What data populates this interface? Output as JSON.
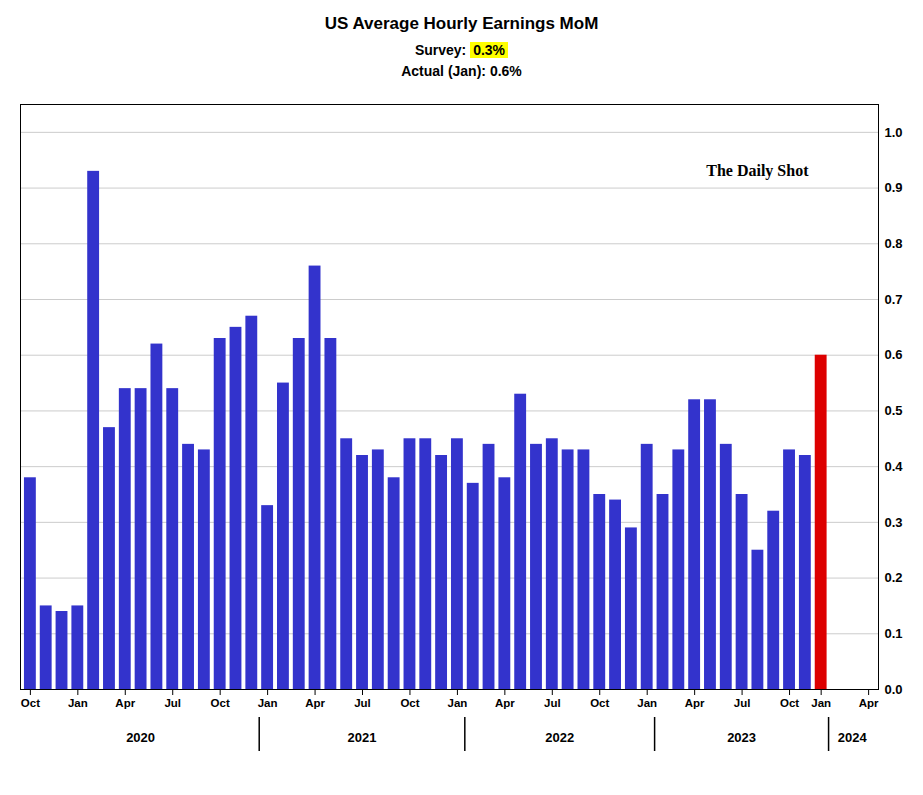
{
  "chart_data": {
    "type": "bar",
    "title": "US Average Hourly Earnings MoM",
    "annotations": [
      {
        "text": "Survey:",
        "highlight": "0.3%",
        "highlight_color": "#ffff00"
      },
      {
        "text": "Actual (Jan):  0.6%"
      }
    ],
    "watermark": "The Daily Shot",
    "categories": [
      "Oct",
      null,
      null,
      "Jan",
      null,
      null,
      "Apr",
      null,
      null,
      "Jul",
      null,
      null,
      "Oct",
      null,
      null,
      "Jan",
      null,
      null,
      "Apr",
      null,
      null,
      "Jul",
      null,
      null,
      "Oct",
      null,
      null,
      "Jan",
      null,
      null,
      "Apr",
      null,
      null,
      "Jul",
      null,
      null,
      "Oct",
      null,
      null,
      "Jan",
      null,
      null,
      "Apr",
      null,
      null,
      "Jul",
      null,
      null,
      "Oct",
      null,
      "Jan",
      null,
      null,
      "Apr"
    ],
    "values": [
      0.38,
      0.15,
      0.14,
      0.15,
      0.93,
      0.47,
      0.54,
      0.54,
      0.62,
      0.54,
      0.44,
      0.43,
      0.63,
      0.65,
      0.67,
      0.33,
      0.55,
      0.63,
      0.76,
      0.63,
      0.45,
      0.42,
      0.43,
      0.38,
      0.45,
      0.45,
      0.42,
      0.45,
      0.37,
      0.44,
      0.38,
      0.53,
      0.44,
      0.45,
      0.43,
      0.43,
      0.35,
      0.34,
      0.29,
      0.44,
      0.35,
      0.43,
      0.52,
      0.52,
      0.44,
      0.35,
      0.25,
      0.32,
      0.43,
      0.42,
      0.6,
      null,
      null,
      null
    ],
    "colors": [
      "#3333cc",
      "#3333cc",
      "#3333cc",
      "#3333cc",
      "#3333cc",
      "#3333cc",
      "#3333cc",
      "#3333cc",
      "#3333cc",
      "#3333cc",
      "#3333cc",
      "#3333cc",
      "#3333cc",
      "#3333cc",
      "#3333cc",
      "#3333cc",
      "#3333cc",
      "#3333cc",
      "#3333cc",
      "#3333cc",
      "#3333cc",
      "#3333cc",
      "#3333cc",
      "#3333cc",
      "#3333cc",
      "#3333cc",
      "#3333cc",
      "#3333cc",
      "#3333cc",
      "#3333cc",
      "#3333cc",
      "#3333cc",
      "#3333cc",
      "#3333cc",
      "#3333cc",
      "#3333cc",
      "#3333cc",
      "#3333cc",
      "#3333cc",
      "#3333cc",
      "#3333cc",
      "#3333cc",
      "#3333cc",
      "#3333cc",
      "#3333cc",
      "#3333cc",
      "#3333cc",
      "#3333cc",
      "#3333cc",
      "#3333cc",
      "#dd0000",
      null,
      null,
      null
    ],
    "x_groups": [
      {
        "label": "2020",
        "first": 0,
        "last": 14
      },
      {
        "label": "2021",
        "first": 15,
        "last": 27
      },
      {
        "label": "2022",
        "first": 28,
        "last": 39
      },
      {
        "label": "2023",
        "first": 40,
        "last": 50
      },
      {
        "label": "2024",
        "first": 51,
        "last": 53
      }
    ],
    "ylim": [
      0.0,
      1.05
    ],
    "yticks": [
      {
        "value": 0.0,
        "label": "0.0"
      },
      0.1,
      0.2,
      0.3,
      0.4,
      0.5,
      0.6,
      0.7,
      0.8,
      0.9,
      {
        "value": 1.0,
        "label": "1.0"
      }
    ],
    "grid": true
  }
}
